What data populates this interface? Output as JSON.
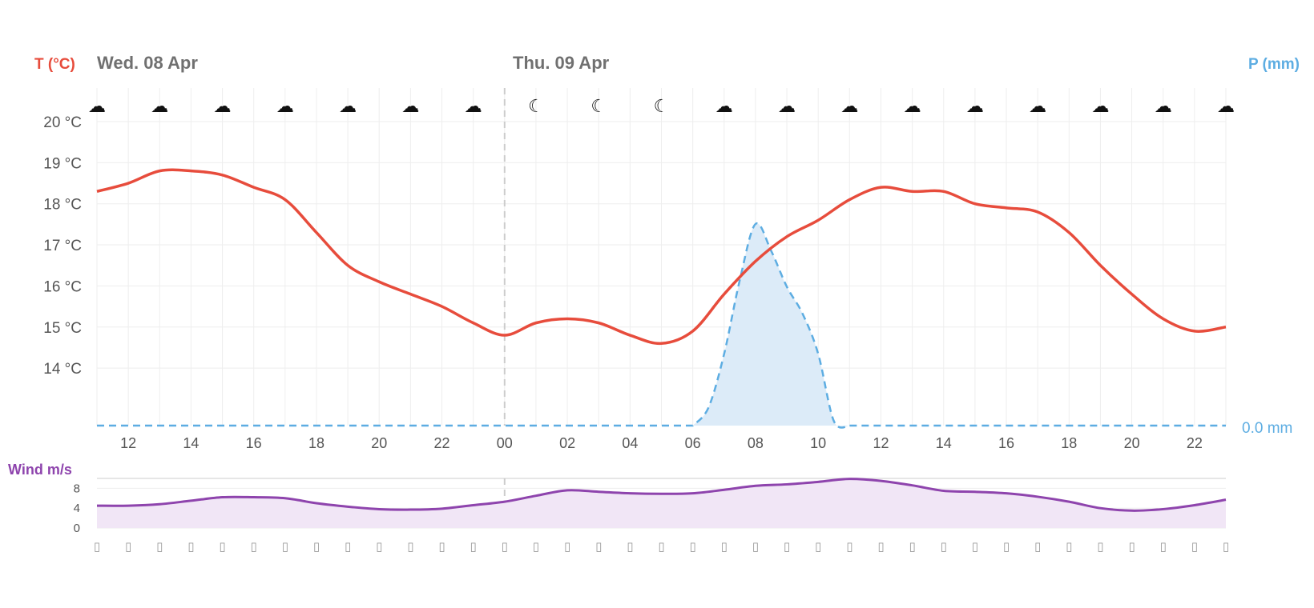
{
  "labels": {
    "temp_axis": "T (°C)",
    "precip_axis": "P (mm)",
    "wind_axis": "Wind m/s",
    "precip_value": "0.0 mm"
  },
  "days": [
    {
      "label": "Wed. 08 Apr",
      "start_hour": 11
    },
    {
      "label": "Thu. 09 Apr",
      "start_hour": 24
    }
  ],
  "colors": {
    "temperature": "#e74c3c",
    "precipitation": "#5dade2",
    "precip_fill": "#dcebf8",
    "wind": "#8e44ad",
    "wind_fill": "#f1e6f6",
    "grid": "#eeeeee",
    "day_divider": "#cccccc"
  },
  "weather_icons": [
    "cloud-icon",
    "cloud-icon",
    "cloud-icon",
    "cloud-icon",
    "cloud-icon",
    "cloud-icon",
    "cloud-icon",
    "moon-icon",
    "moon-icon",
    "moon-icon",
    "cloud-icon",
    "cloud-icon",
    "cloud-icon",
    "cloud-icon",
    "cloud-icon",
    "cloud-icon",
    "cloud-icon",
    "cloud-icon",
    "cloud-icon"
  ],
  "wind_direction_icons": "arrow-icon",
  "chart_data": [
    {
      "type": "line",
      "title": "",
      "xlabel": "",
      "ylabel": "T (°C)",
      "y2label": "P (mm)",
      "x": [
        11,
        12,
        13,
        14,
        15,
        16,
        17,
        18,
        19,
        20,
        21,
        22,
        23,
        24,
        25,
        26,
        27,
        28,
        29,
        30,
        31,
        32,
        33,
        34,
        35,
        36,
        37,
        38,
        39,
        40,
        41,
        42,
        43,
        44,
        45,
        46,
        47
      ],
      "x_tick_labels": [
        "12",
        "14",
        "16",
        "18",
        "20",
        "22",
        "00",
        "02",
        "04",
        "06",
        "08",
        "10",
        "12",
        "14",
        "16",
        "18",
        "20",
        "22"
      ],
      "x_tick_positions": [
        12,
        14,
        16,
        18,
        20,
        22,
        24,
        26,
        28,
        30,
        32,
        34,
        36,
        38,
        40,
        42,
        44,
        46
      ],
      "ylim": [
        12.6,
        20
      ],
      "y_ticks": [
        14,
        15,
        16,
        17,
        18,
        19,
        20
      ],
      "y_tick_labels": [
        "14 °C",
        "15 °C",
        "16 °C",
        "17 °C",
        "18 °C",
        "19 °C",
        "20 °C"
      ],
      "grid": true,
      "series": [
        {
          "kind": "temperature",
          "values": [
            18.3,
            18.5,
            18.8,
            18.8,
            18.7,
            18.4,
            18.1,
            17.3,
            16.5,
            16.1,
            15.8,
            15.5,
            15.1,
            14.8,
            15.1,
            15.2,
            15.1,
            14.8,
            14.6,
            14.9,
            15.8,
            16.6,
            17.2,
            17.6,
            18.1,
            18.4,
            18.3,
            18.3,
            18.0,
            17.9,
            17.8,
            17.3,
            16.5,
            15.8,
            15.2,
            14.9,
            15.0
          ]
        },
        {
          "kind": "precipitation",
          "values": [
            0,
            0,
            0,
            0,
            0,
            0,
            0,
            0,
            0,
            0,
            0,
            0,
            0,
            0,
            0,
            0,
            0,
            0,
            0,
            0,
            0.2,
            0.6,
            0.55,
            0.35,
            0.0,
            0,
            0,
            0,
            0,
            0,
            0,
            0,
            0,
            0,
            0,
            0,
            0
          ],
          "precip_x": [
            30,
            30.5,
            31,
            31.5,
            32,
            32.5,
            33,
            33.5,
            34,
            34.5,
            35
          ],
          "precip_values": [
            0,
            0.08,
            0.32,
            0.65,
            0.9,
            0.78,
            0.62,
            0.5,
            0.32,
            0.02,
            0
          ]
        }
      ]
    },
    {
      "type": "area",
      "title": "",
      "ylabel": "Wind m/s",
      "x": [
        11,
        12,
        13,
        14,
        15,
        16,
        17,
        18,
        19,
        20,
        21,
        22,
        23,
        24,
        25,
        26,
        27,
        28,
        29,
        30,
        31,
        32,
        33,
        34,
        35,
        36,
        37,
        38,
        39,
        40,
        41,
        42,
        43,
        44,
        45,
        46,
        47
      ],
      "ylim": [
        0,
        10
      ],
      "y_ticks": [
        0,
        4,
        8
      ],
      "y_tick_labels": [
        "0",
        "4",
        "8"
      ],
      "series": [
        {
          "name": "",
          "values": [
            4.5,
            4.5,
            4.8,
            5.5,
            6.2,
            6.2,
            6.0,
            5.0,
            4.3,
            3.8,
            3.7,
            3.9,
            4.6,
            5.3,
            6.5,
            7.6,
            7.3,
            7.0,
            6.9,
            7.0,
            7.7,
            8.5,
            8.8,
            9.3,
            9.9,
            9.5,
            8.6,
            7.5,
            7.3,
            7.0,
            6.3,
            5.3,
            4.0,
            3.5,
            3.8,
            4.6,
            5.7
          ]
        }
      ]
    }
  ]
}
